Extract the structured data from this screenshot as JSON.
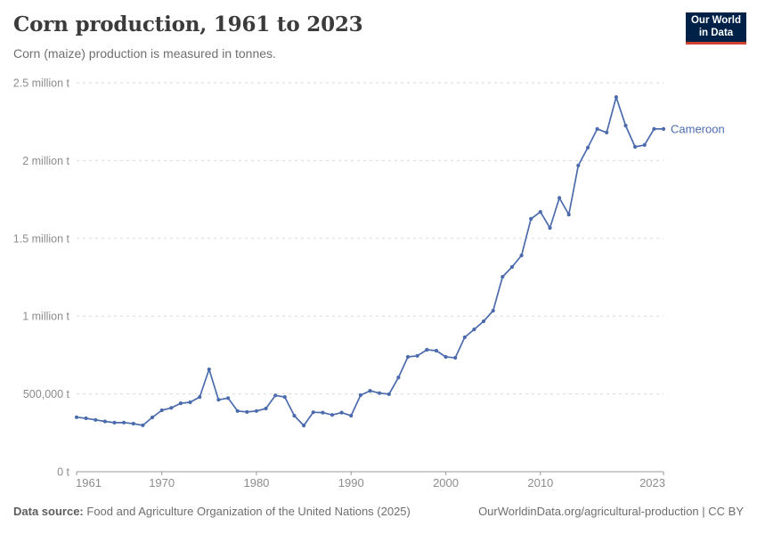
{
  "header": {
    "title": "Corn production, 1961 to 2023",
    "subtitle": "Corn (maize) production is measured in tonnes."
  },
  "logo": {
    "line1": "Our World",
    "line2": "in Data",
    "bg_color": "#002147",
    "accent_color": "#d0402f"
  },
  "chart_data": {
    "type": "line",
    "title": "Corn production, 1961 to 2023",
    "ylabel": "",
    "xlabel": "",
    "unit": "tonnes",
    "grid": "dashed-horizontal",
    "legend_position": "end-of-line-label",
    "ylim": [
      0,
      2500000
    ],
    "xlim": [
      1961,
      2023
    ],
    "x_ticks": [
      1961,
      1970,
      1980,
      1990,
      2000,
      2010,
      2023
    ],
    "y_ticks": [
      {
        "value": 0,
        "label": "0 t"
      },
      {
        "value": 500000,
        "label": "500,000 t"
      },
      {
        "value": 1000000,
        "label": "1 million t"
      },
      {
        "value": 1500000,
        "label": "1.5 million t"
      },
      {
        "value": 2000000,
        "label": "2 million t"
      },
      {
        "value": 2500000,
        "label": "2.5 million t"
      }
    ],
    "x": [
      1961,
      1962,
      1963,
      1964,
      1965,
      1966,
      1967,
      1968,
      1969,
      1970,
      1971,
      1972,
      1973,
      1974,
      1975,
      1976,
      1977,
      1978,
      1979,
      1980,
      1981,
      1982,
      1983,
      1984,
      1985,
      1986,
      1987,
      1988,
      1989,
      1990,
      1991,
      1992,
      1993,
      1994,
      1995,
      1996,
      1997,
      1998,
      1999,
      2000,
      2001,
      2002,
      2003,
      2004,
      2005,
      2006,
      2007,
      2008,
      2009,
      2010,
      2011,
      2012,
      2013,
      2014,
      2015,
      2016,
      2017,
      2018,
      2019,
      2020,
      2021,
      2022,
      2023
    ],
    "series": [
      {
        "name": "Cameroon",
        "color": "#4C6BAC",
        "values": [
          350000,
          343000,
          333000,
          323000,
          315000,
          316000,
          309000,
          298000,
          349000,
          395000,
          410000,
          440000,
          446000,
          480000,
          658000,
          462000,
          473000,
          390000,
          384000,
          390000,
          406000,
          490000,
          480000,
          360000,
          297000,
          382000,
          380000,
          365000,
          380000,
          360000,
          492000,
          520000,
          505000,
          498000,
          606000,
          738000,
          745000,
          784000,
          778000,
          738000,
          732000,
          864000,
          915000,
          967000,
          1035000,
          1253000,
          1316000,
          1390000,
          1625000,
          1670000,
          1567000,
          1760000,
          1653000,
          1968000,
          2083000,
          2203000,
          2180000,
          2408000,
          2225000,
          2088000,
          2100000,
          2203000,
          2203000
        ]
      }
    ]
  },
  "footer": {
    "source_label": "Data source:",
    "source_text": "Food and Agriculture Organization of the United Nations (2025)",
    "attribution": "OurWorldinData.org/agricultural-production | CC BY"
  }
}
